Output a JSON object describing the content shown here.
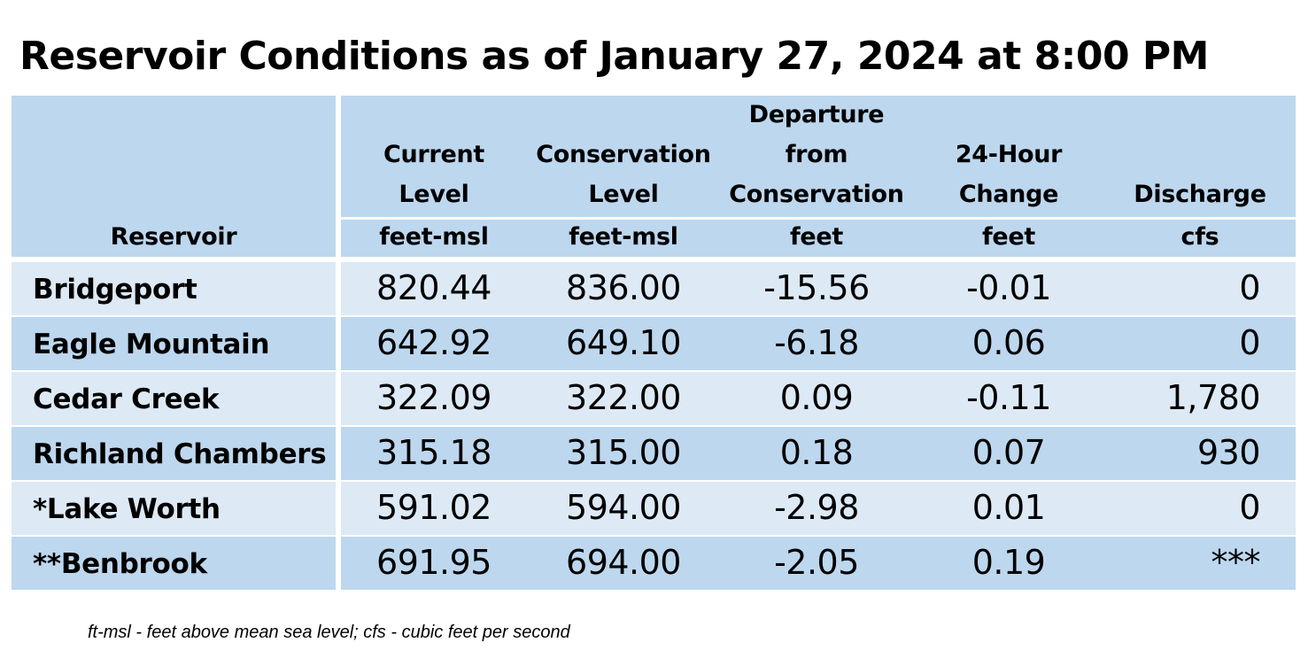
{
  "title": "Reservoir Conditions as of January 27, 2024 at 8:00 PM",
  "columns": [
    {
      "label_lines": [
        "Reservoir"
      ],
      "unit": ""
    },
    {
      "label_lines": [
        "Current",
        "Level"
      ],
      "unit": "feet-msl"
    },
    {
      "label_lines": [
        "Conservation",
        "Level"
      ],
      "unit": "feet-msl"
    },
    {
      "label_lines": [
        "Departure",
        "from",
        "Conservation"
      ],
      "unit": "feet"
    },
    {
      "label_lines": [
        "24-Hour",
        "Change"
      ],
      "unit": "feet"
    },
    {
      "label_lines": [
        "Discharge"
      ],
      "unit": "cfs"
    }
  ],
  "rows": [
    {
      "reservoir": "Bridgeport",
      "current_level": "820.44",
      "conservation_level": "836.00",
      "departure": "-15.56",
      "change_24h": "-0.01",
      "discharge": "0"
    },
    {
      "reservoir": "Eagle Mountain",
      "current_level": "642.92",
      "conservation_level": "649.10",
      "departure": "-6.18",
      "change_24h": "0.06",
      "discharge": "0"
    },
    {
      "reservoir": "Cedar Creek",
      "current_level": "322.09",
      "conservation_level": "322.00",
      "departure": "0.09",
      "change_24h": "-0.11",
      "discharge": "1,780"
    },
    {
      "reservoir": "Richland Chambers",
      "current_level": "315.18",
      "conservation_level": "315.00",
      "departure": "0.18",
      "change_24h": "0.07",
      "discharge": "930"
    },
    {
      "reservoir": "*Lake Worth",
      "current_level": "591.02",
      "conservation_level": "594.00",
      "departure": "-2.98",
      "change_24h": "0.01",
      "discharge": "0"
    },
    {
      "reservoir": "**Benbrook",
      "current_level": "691.95",
      "conservation_level": "694.00",
      "departure": "-2.05",
      "change_24h": "0.19",
      "discharge": "***"
    }
  ],
  "footnote": "ft-msl - feet above mean sea level; cfs - cubic feet per second",
  "colors": {
    "header_bg": "#bdd7ee",
    "row_light": "#dde9f5",
    "row_dark": "#bdd7ee",
    "separator": "#ffffff"
  }
}
